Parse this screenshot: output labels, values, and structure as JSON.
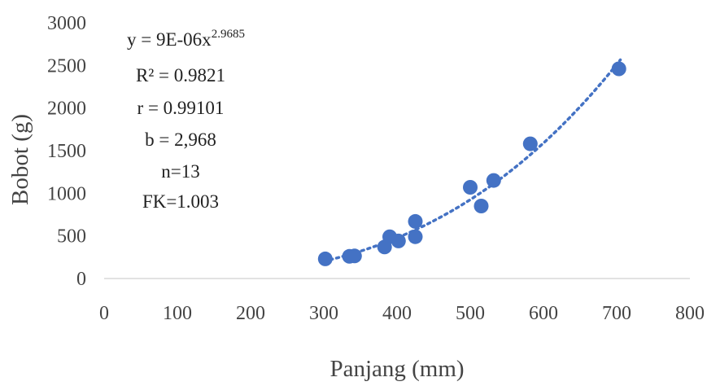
{
  "chart_data": {
    "type": "scatter",
    "xlabel": "Panjang (mm)",
    "ylabel": "Bobot (g)",
    "xlim": [
      0,
      800
    ],
    "ylim": [
      0,
      3000
    ],
    "x_ticks": [
      "0",
      "100",
      "200",
      "300",
      "400",
      "500",
      "600",
      "700",
      "800"
    ],
    "y_ticks": [
      "0",
      "500",
      "1000",
      "1500",
      "2000",
      "2500",
      "3000"
    ],
    "grid": false,
    "trendline": {
      "type": "power",
      "a": 9e-06,
      "b": 2.9685,
      "style": "dotted"
    },
    "annotation": {
      "equation": "y = 9E-06x",
      "equation_exp": "2.9685",
      "r2": "R² = 0.9821",
      "r": "r = 0.99101",
      "b": "b = 2,968",
      "n": "n=13",
      "fk": "FK=1.003"
    },
    "colors": {
      "marker": "#4472C4",
      "text": "#444444"
    },
    "series": [
      {
        "points": [
          [
            302,
            230
          ],
          [
            335,
            260
          ],
          [
            342,
            265
          ],
          [
            383,
            370
          ],
          [
            390,
            490
          ],
          [
            402,
            440
          ],
          [
            425,
            670
          ],
          [
            425,
            490
          ],
          [
            500,
            1070
          ],
          [
            515,
            850
          ],
          [
            532,
            1150
          ],
          [
            582,
            1580
          ],
          [
            703,
            2460
          ]
        ]
      }
    ]
  }
}
